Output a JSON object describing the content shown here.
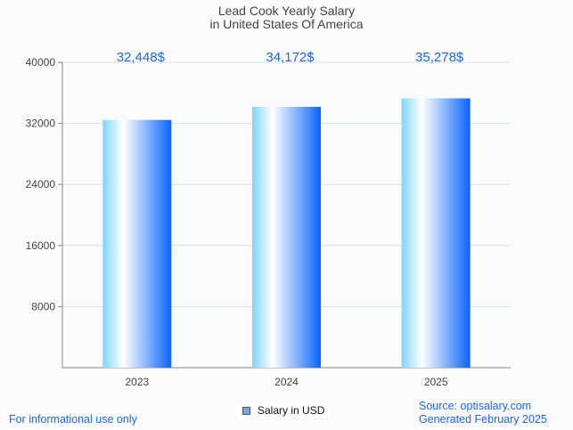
{
  "chart_data": {
    "type": "bar",
    "title": "Lead Cook Yearly Salary",
    "subtitle": "in United States Of America",
    "categories": [
      "2023",
      "2024",
      "2025"
    ],
    "values": [
      32448,
      34172,
      35278
    ],
    "data_labels": [
      "32,448$",
      "34,172$",
      "35,278$"
    ],
    "yticks": [
      "8000",
      "16000",
      "24000",
      "32000",
      "40000"
    ],
    "ylim": [
      0,
      40000
    ],
    "xlabel": "",
    "ylabel": "",
    "grid": true,
    "legend": {
      "label": "Salary in USD",
      "placement": "bottom-center"
    },
    "colors": {
      "bar_light": "#7fd4ff",
      "bar_mid": "#ffffff",
      "bar_dark": "#0a64ff",
      "label": "#1a66ff"
    }
  },
  "footer": {
    "disclaimer": "For informational use only",
    "source": "Source: optisalary.com",
    "generated": "Generated February 2025"
  }
}
